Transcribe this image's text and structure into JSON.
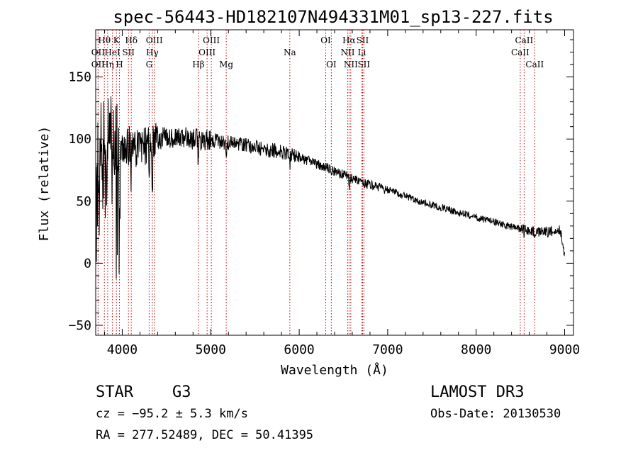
{
  "chart_data": {
    "type": "line",
    "title": "spec-56443-HD182107N494331M01_sp13-227.fits",
    "xlabel": "Wavelength (Å)",
    "ylabel": "Flux (relative)",
    "xlim": [
      3700,
      9100
    ],
    "ylim": [
      -58,
      188
    ],
    "xticks": [
      4000,
      5000,
      6000,
      7000,
      8000,
      9000
    ],
    "xtick_labels": [
      "4000",
      "5000",
      "6000",
      "7000",
      "8000",
      "9000"
    ],
    "yticks": [
      -50,
      0,
      50,
      100,
      150
    ],
    "ytick_labels": [
      "−50",
      "0",
      "50",
      "100",
      "150"
    ],
    "continuum": [
      [
        3700,
        70
      ],
      [
        3760,
        95
      ],
      [
        3850,
        105
      ],
      [
        3950,
        100
      ],
      [
        4050,
        95
      ],
      [
        4200,
        92
      ],
      [
        4400,
        100
      ],
      [
        4600,
        102
      ],
      [
        4800,
        100
      ],
      [
        5000,
        99
      ],
      [
        5200,
        97
      ],
      [
        5400,
        95
      ],
      [
        5600,
        92
      ],
      [
        5800,
        90
      ],
      [
        6000,
        85
      ],
      [
        6200,
        80
      ],
      [
        6400,
        74
      ],
      [
        6600,
        68
      ],
      [
        6800,
        63
      ],
      [
        7000,
        59
      ],
      [
        7200,
        54
      ],
      [
        7400,
        49
      ],
      [
        7600,
        45
      ],
      [
        7800,
        41
      ],
      [
        8000,
        37
      ],
      [
        8200,
        33
      ],
      [
        8400,
        29
      ],
      [
        8600,
        26
      ],
      [
        8800,
        25
      ],
      [
        8950,
        27
      ],
      [
        9000,
        5
      ]
    ],
    "spectral_lines": [
      {
        "label": "OII",
        "x": 3727,
        "row": 3
      },
      {
        "label": "OII",
        "x": 3727,
        "row": 2
      },
      {
        "label": "Hθ",
        "x": 3798,
        "row": 1
      },
      {
        "label": "Hη",
        "x": 3835,
        "row": 3
      },
      {
        "label": "HeI",
        "x": 3889,
        "row": 2
      },
      {
        "label": "K",
        "x": 3934,
        "row": 1
      },
      {
        "label": "H",
        "x": 3968,
        "row": 3
      },
      {
        "label": "SII",
        "x": 4070,
        "row": 2
      },
      {
        "label": "Hδ",
        "x": 4102,
        "row": 1
      },
      {
        "label": "G",
        "x": 4304,
        "row": 3
      },
      {
        "label": "Hγ",
        "x": 4340,
        "row": 2
      },
      {
        "label": "OIII",
        "x": 4363,
        "row": 1
      },
      {
        "label": "Hβ",
        "x": 4861,
        "row": 3
      },
      {
        "label": "OIII",
        "x": 4959,
        "row": 2
      },
      {
        "label": "OIII",
        "x": 5007,
        "row": 1
      },
      {
        "label": "Mg",
        "x": 5175,
        "row": 3
      },
      {
        "label": "Na",
        "x": 5894,
        "row": 2
      },
      {
        "label": "OI",
        "x": 6300,
        "row": 1
      },
      {
        "label": "OI",
        "x": 6363,
        "row": 3
      },
      {
        "label": "NII",
        "x": 6548,
        "row": 2
      },
      {
        "label": "Hα",
        "x": 6563,
        "row": 1
      },
      {
        "label": "NII",
        "x": 6583,
        "row": 3
      },
      {
        "label": "Li",
        "x": 6708,
        "row": 2
      },
      {
        "label": "SII",
        "x": 6716,
        "row": 1
      },
      {
        "label": "SII",
        "x": 6731,
        "row": 3
      },
      {
        "label": "CaII",
        "x": 8498,
        "row": 2
      },
      {
        "label": "CaII",
        "x": 8542,
        "row": 1
      },
      {
        "label": "CaII",
        "x": 8662,
        "row": 3
      }
    ]
  },
  "info": {
    "object_class": "STAR",
    "subclass": "G3",
    "survey": "LAMOST DR3",
    "cz": "cz = −95.2 ± 5.3 km/s",
    "obs_date": "Obs-Date: 20130530",
    "coords": "RA = 277.52489, DEC =  50.41395"
  },
  "colors": {
    "spectrum": "#000000",
    "line_markers": "#cc0000",
    "axes": "#000000"
  }
}
